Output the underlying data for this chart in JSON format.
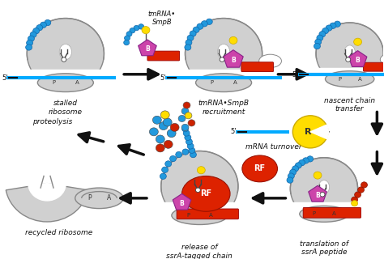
{
  "bg_color": "#ffffff",
  "ribosome_color": "#d0d0d0",
  "ribosome_edge": "#888888",
  "mrna_color": "#00aaff",
  "bead_color": "#2299dd",
  "bead_edge": "#1166aa",
  "smpb_color": "#cc44aa",
  "red_bar_color": "#dd2200",
  "yellow_dot_color": "#ffdd00",
  "rf_color": "#dd2200",
  "arrow_color": "#111111",
  "label_color": "#111111",
  "labels": {
    "stalled": "stalled\nribosome",
    "recruitment": "tmRNA•SmpB\nrecruitment",
    "nascent": "nascent chain\ntransfer",
    "mRNA_turnover": "mRNA turnover",
    "translation": "translation of\nssrA peptide",
    "release": "release of\nssrA-tagged chain",
    "recycled": "recycled ribosome",
    "proteolysis": "proteolysis",
    "tmRNA_label": "tmRNA•\nSmpB"
  }
}
